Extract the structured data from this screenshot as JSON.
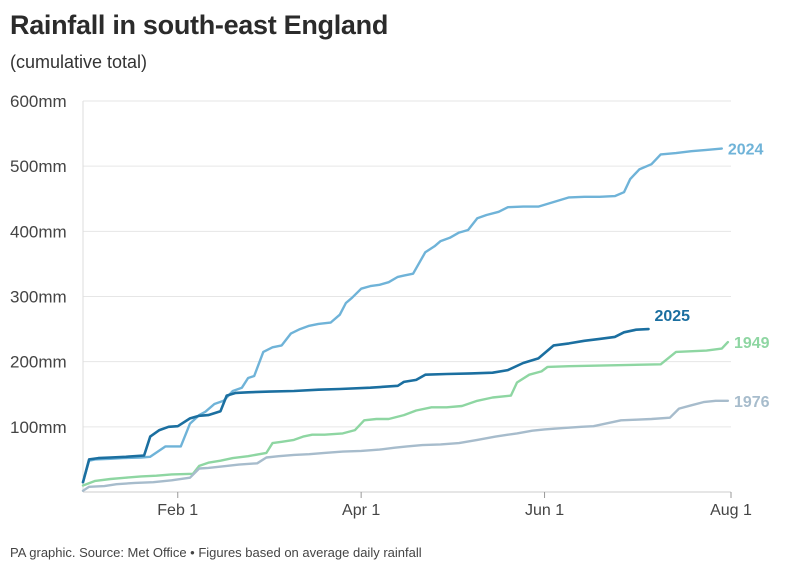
{
  "title": "Rainfall in south-east England",
  "subtitle": "(cumulative total)",
  "footer": "PA graphic. Source: Met Office • Figures based on average daily rainfall",
  "chart_data": {
    "type": "line",
    "title": "Rainfall in south-east England",
    "subtitle": "(cumulative total)",
    "xlabel": "",
    "ylabel": "",
    "x_unit": "day of year",
    "xlim": [
      1,
      213
    ],
    "ylim": [
      0,
      600
    ],
    "y_ticks": [
      {
        "value": 100,
        "label": "100mm"
      },
      {
        "value": 200,
        "label": "200mm"
      },
      {
        "value": 300,
        "label": "300mm"
      },
      {
        "value": 400,
        "label": "400mm"
      },
      {
        "value": 500,
        "label": "500mm"
      },
      {
        "value": 600,
        "label": "600mm"
      }
    ],
    "x_ticks": [
      {
        "value": 32,
        "label": "Feb 1"
      },
      {
        "value": 92,
        "label": "Apr 1"
      },
      {
        "value": 152,
        "label": "Jun 1"
      },
      {
        "value": 213,
        "label": "Aug 1"
      }
    ],
    "grid": true,
    "legend": "direct labels at line ends",
    "series": [
      {
        "name": "2024",
        "color": "#6fb3d8",
        "points": [
          [
            1,
            15
          ],
          [
            3,
            48
          ],
          [
            5,
            50
          ],
          [
            10,
            51
          ],
          [
            14,
            52
          ],
          [
            20,
            53
          ],
          [
            23,
            54
          ],
          [
            28,
            70
          ],
          [
            33,
            70
          ],
          [
            36,
            105
          ],
          [
            39,
            118
          ],
          [
            41,
            123
          ],
          [
            44,
            135
          ],
          [
            47,
            140
          ],
          [
            50,
            155
          ],
          [
            53,
            160
          ],
          [
            55,
            175
          ],
          [
            57,
            178
          ],
          [
            60,
            215
          ],
          [
            63,
            222
          ],
          [
            66,
            225
          ],
          [
            69,
            243
          ],
          [
            72,
            250
          ],
          [
            75,
            255
          ],
          [
            78,
            258
          ],
          [
            82,
            260
          ],
          [
            85,
            272
          ],
          [
            87,
            290
          ],
          [
            89,
            298
          ],
          [
            92,
            312
          ],
          [
            95,
            316
          ],
          [
            98,
            318
          ],
          [
            101,
            322
          ],
          [
            104,
            330
          ],
          [
            106,
            332
          ],
          [
            109,
            335
          ],
          [
            113,
            368
          ],
          [
            116,
            377
          ],
          [
            118,
            385
          ],
          [
            121,
            390
          ],
          [
            124,
            398
          ],
          [
            127,
            402
          ],
          [
            130,
            420
          ],
          [
            133,
            425
          ],
          [
            137,
            430
          ],
          [
            140,
            437
          ],
          [
            145,
            438
          ],
          [
            150,
            438
          ],
          [
            155,
            445
          ],
          [
            160,
            452
          ],
          [
            165,
            453
          ],
          [
            170,
            453
          ],
          [
            175,
            454
          ],
          [
            178,
            460
          ],
          [
            180,
            480
          ],
          [
            183,
            495
          ],
          [
            187,
            503
          ],
          [
            190,
            518
          ],
          [
            195,
            520
          ],
          [
            200,
            523
          ],
          [
            205,
            525
          ],
          [
            210,
            527
          ]
        ]
      },
      {
        "name": "2025",
        "color": "#1b6fa0",
        "points": [
          [
            1,
            15
          ],
          [
            3,
            50
          ],
          [
            6,
            52
          ],
          [
            10,
            53
          ],
          [
            15,
            54
          ],
          [
            21,
            56
          ],
          [
            23,
            85
          ],
          [
            26,
            95
          ],
          [
            29,
            100
          ],
          [
            32,
            101
          ],
          [
            36,
            113
          ],
          [
            39,
            117
          ],
          [
            42,
            118
          ],
          [
            46,
            124
          ],
          [
            48,
            148
          ],
          [
            51,
            152
          ],
          [
            55,
            153
          ],
          [
            62,
            154
          ],
          [
            70,
            155
          ],
          [
            78,
            157
          ],
          [
            85,
            158
          ],
          [
            95,
            160
          ],
          [
            104,
            163
          ],
          [
            106,
            169
          ],
          [
            110,
            172
          ],
          [
            113,
            180
          ],
          [
            120,
            181
          ],
          [
            128,
            182
          ],
          [
            135,
            183
          ],
          [
            140,
            187
          ],
          [
            145,
            198
          ],
          [
            150,
            205
          ],
          [
            155,
            225
          ],
          [
            160,
            228
          ],
          [
            165,
            232
          ],
          [
            170,
            235
          ],
          [
            175,
            238
          ],
          [
            178,
            245
          ],
          [
            182,
            249
          ],
          [
            186,
            250
          ]
        ]
      },
      {
        "name": "1949",
        "color": "#8ed6a2",
        "points": [
          [
            1,
            10
          ],
          [
            5,
            17
          ],
          [
            10,
            20
          ],
          [
            15,
            22
          ],
          [
            20,
            24
          ],
          [
            25,
            25
          ],
          [
            30,
            27
          ],
          [
            37,
            28
          ],
          [
            39,
            40
          ],
          [
            42,
            45
          ],
          [
            46,
            48
          ],
          [
            50,
            52
          ],
          [
            55,
            55
          ],
          [
            61,
            60
          ],
          [
            63,
            75
          ],
          [
            66,
            77
          ],
          [
            70,
            80
          ],
          [
            73,
            85
          ],
          [
            76,
            88
          ],
          [
            80,
            88
          ],
          [
            86,
            90
          ],
          [
            90,
            95
          ],
          [
            93,
            110
          ],
          [
            97,
            112
          ],
          [
            101,
            112
          ],
          [
            106,
            118
          ],
          [
            110,
            125
          ],
          [
            115,
            130
          ],
          [
            120,
            130
          ],
          [
            125,
            132
          ],
          [
            130,
            140
          ],
          [
            135,
            145
          ],
          [
            141,
            148
          ],
          [
            143,
            168
          ],
          [
            147,
            180
          ],
          [
            151,
            185
          ],
          [
            153,
            192
          ],
          [
            160,
            193
          ],
          [
            170,
            194
          ],
          [
            180,
            195
          ],
          [
            190,
            196
          ],
          [
            195,
            215
          ],
          [
            205,
            217
          ],
          [
            210,
            220
          ],
          [
            212,
            230
          ]
        ]
      },
      {
        "name": "1976",
        "color": "#a7bccc",
        "points": [
          [
            1,
            2
          ],
          [
            3,
            8
          ],
          [
            8,
            9
          ],
          [
            12,
            12
          ],
          [
            18,
            14
          ],
          [
            24,
            15
          ],
          [
            30,
            18
          ],
          [
            36,
            22
          ],
          [
            39,
            36
          ],
          [
            42,
            37
          ],
          [
            48,
            40
          ],
          [
            52,
            42
          ],
          [
            58,
            44
          ],
          [
            61,
            53
          ],
          [
            65,
            55
          ],
          [
            70,
            57
          ],
          [
            75,
            58
          ],
          [
            80,
            60
          ],
          [
            86,
            62
          ],
          [
            92,
            63
          ],
          [
            98,
            65
          ],
          [
            103,
            68
          ],
          [
            107,
            70
          ],
          [
            112,
            72
          ],
          [
            118,
            73
          ],
          [
            124,
            75
          ],
          [
            130,
            80
          ],
          [
            136,
            85
          ],
          [
            140,
            88
          ],
          [
            143,
            90
          ],
          [
            148,
            94
          ],
          [
            152,
            96
          ],
          [
            158,
            98
          ],
          [
            164,
            100
          ],
          [
            168,
            101
          ],
          [
            173,
            106
          ],
          [
            177,
            110
          ],
          [
            182,
            111
          ],
          [
            187,
            112
          ],
          [
            193,
            114
          ],
          [
            196,
            128
          ],
          [
            200,
            133
          ],
          [
            204,
            138
          ],
          [
            208,
            140
          ],
          [
            212,
            140
          ]
        ]
      }
    ]
  }
}
